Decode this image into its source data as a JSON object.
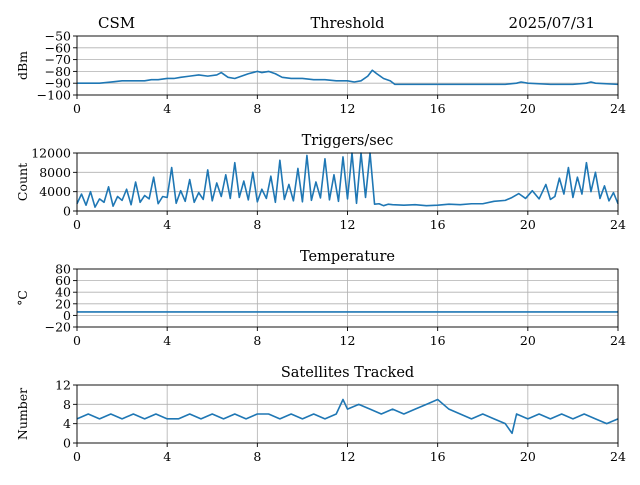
{
  "header": {
    "left": "CSM",
    "right": "2025/07/31"
  },
  "colors": {
    "series": "#1f77b4",
    "grid": "#b0b0b0",
    "axes": "#000000"
  },
  "chart_data": [
    {
      "type": "line",
      "title": "Threshold",
      "xlabel": "",
      "ylabel": "dBm",
      "xlim": [
        0,
        24
      ],
      "ylim": [
        -100,
        -50
      ],
      "xticks": [
        0,
        4,
        8,
        12,
        16,
        20,
        24
      ],
      "yticks": [
        -100,
        -90,
        -80,
        -70,
        -60,
        -50
      ],
      "ytick_labels": [
        "−100",
        "−90",
        "−80",
        "−70",
        "−60",
        "−50"
      ],
      "grid": true,
      "series": [
        {
          "x": [
            0,
            0.5,
            1,
            1.5,
            2,
            2.5,
            3,
            3.3,
            3.6,
            4,
            4.3,
            4.6,
            5,
            5.4,
            5.8,
            6.2,
            6.4,
            6.7,
            7,
            7.3,
            7.6,
            8,
            8.2,
            8.5,
            8.8,
            9.1,
            9.5,
            10,
            10.5,
            11,
            11.5,
            12,
            12.3,
            12.6,
            12.9,
            13.1,
            13.3,
            13.6,
            13.9,
            14.1,
            14.5,
            15,
            16,
            17,
            18,
            19,
            19.5,
            19.7,
            20,
            21,
            22,
            22.6,
            22.8,
            23,
            24
          ],
          "y": [
            -90,
            -90,
            -90,
            -89,
            -88,
            -88,
            -88,
            -87,
            -87,
            -86,
            -86,
            -85,
            -84,
            -83,
            -84,
            -83,
            -81,
            -85,
            -86,
            -84,
            -82,
            -80,
            -81,
            -80,
            -82,
            -85,
            -86,
            -86,
            -87,
            -87,
            -88,
            -88,
            -89,
            -88,
            -84,
            -79,
            -82,
            -86,
            -88,
            -91,
            -91,
            -91,
            -91,
            -91,
            -91,
            -91,
            -90,
            -89,
            -90,
            -91,
            -91,
            -90,
            -89,
            -90,
            -91
          ]
        }
      ]
    },
    {
      "type": "line",
      "title": "Triggers/sec",
      "xlabel": "",
      "ylabel": "Count",
      "xlim": [
        0,
        24
      ],
      "ylim": [
        0,
        12000
      ],
      "xticks": [
        0,
        4,
        8,
        12,
        16,
        20,
        24
      ],
      "yticks": [
        0,
        4000,
        8000,
        12000
      ],
      "ytick_labels": [
        "0",
        "4000",
        "8000",
        "12000"
      ],
      "grid": true,
      "series": [
        {
          "x": [
            0,
            0.2,
            0.4,
            0.6,
            0.8,
            1,
            1.2,
            1.4,
            1.6,
            1.8,
            2,
            2.2,
            2.4,
            2.6,
            2.8,
            3,
            3.2,
            3.4,
            3.6,
            3.8,
            4,
            4.2,
            4.4,
            4.6,
            4.8,
            5,
            5.2,
            5.4,
            5.6,
            5.8,
            6,
            6.2,
            6.4,
            6.6,
            6.8,
            7,
            7.2,
            7.4,
            7.6,
            7.8,
            8,
            8.2,
            8.4,
            8.6,
            8.8,
            9,
            9.2,
            9.4,
            9.6,
            9.8,
            10,
            10.2,
            10.4,
            10.6,
            10.8,
            11,
            11.2,
            11.4,
            11.6,
            11.8,
            12,
            12.2,
            12.4,
            12.6,
            12.8,
            13,
            13.2,
            13.4,
            13.6,
            13.8,
            14,
            14.5,
            15,
            15.5,
            16,
            16.5,
            17,
            17.5,
            18,
            18.5,
            19,
            19.3,
            19.6,
            19.9,
            20.2,
            20.5,
            20.8,
            21,
            21.2,
            21.4,
            21.6,
            21.8,
            22,
            22.2,
            22.4,
            22.6,
            22.8,
            23,
            23.2,
            23.4,
            23.6,
            23.8,
            24
          ],
          "y": [
            1500,
            3500,
            1200,
            4000,
            800,
            2500,
            1800,
            5000,
            1000,
            3000,
            2200,
            4500,
            1300,
            6000,
            1800,
            3200,
            2500,
            7000,
            1500,
            3000,
            2800,
            9000,
            1600,
            4200,
            2000,
            6500,
            1800,
            3800,
            2400,
            8500,
            2100,
            5800,
            3000,
            7500,
            2600,
            10000,
            2800,
            6200,
            2300,
            8000,
            1900,
            4500,
            2600,
            7200,
            1800,
            10500,
            2400,
            5500,
            2100,
            8800,
            1900,
            11500,
            2200,
            6000,
            2700,
            10800,
            2300,
            7500,
            2000,
            11200,
            2500,
            12000,
            1600,
            12000,
            2800,
            12000,
            1400,
            1500,
            1100,
            1400,
            1300,
            1200,
            1300,
            1100,
            1200,
            1400,
            1300,
            1500,
            1500,
            2000,
            2200,
            2800,
            3600,
            2600,
            4200,
            2500,
            5500,
            2400,
            3000,
            6800,
            3500,
            9000,
            2800,
            7000,
            3500,
            10000,
            4000,
            8000,
            2600,
            5200,
            2100,
            3800,
            1500
          ]
        }
      ]
    },
    {
      "type": "line",
      "title": "Temperature",
      "xlabel": "",
      "ylabel": "°C",
      "xlim": [
        0,
        24
      ],
      "ylim": [
        -20,
        80
      ],
      "xticks": [
        0,
        4,
        8,
        12,
        16,
        20,
        24
      ],
      "yticks": [
        -20,
        0,
        20,
        40,
        60,
        80
      ],
      "ytick_labels": [
        "−20",
        "0",
        "20",
        "40",
        "60",
        "80"
      ],
      "grid": true,
      "series": [
        {
          "x": [
            0,
            24
          ],
          "y": [
            6,
            6
          ]
        }
      ]
    },
    {
      "type": "line",
      "title": "Satellites Tracked",
      "xlabel": "",
      "ylabel": "Number",
      "xlim": [
        0,
        24
      ],
      "ylim": [
        0,
        12
      ],
      "xticks": [
        0,
        4,
        8,
        12,
        16,
        20,
        24
      ],
      "yticks": [
        0,
        4,
        8,
        12
      ],
      "ytick_labels": [
        "0",
        "4",
        "8",
        "12"
      ],
      "grid": true,
      "series": [
        {
          "x": [
            0,
            0.5,
            1,
            1.5,
            2,
            2.5,
            3,
            3.5,
            4,
            4.5,
            5,
            5.5,
            6,
            6.5,
            7,
            7.5,
            8,
            8.5,
            9,
            9.5,
            10,
            10.5,
            11,
            11.5,
            11.8,
            12,
            12.5,
            13,
            13.5,
            14,
            14.5,
            15,
            15.5,
            16,
            16.5,
            17,
            17.5,
            18,
            18.5,
            19,
            19.3,
            19.5,
            20,
            20.5,
            21,
            21.5,
            22,
            22.5,
            23,
            23.5,
            24
          ],
          "y": [
            5,
            6,
            5,
            6,
            5,
            6,
            5,
            6,
            5,
            5,
            6,
            5,
            6,
            5,
            6,
            5,
            6,
            6,
            5,
            6,
            5,
            6,
            5,
            6,
            9,
            7,
            8,
            7,
            6,
            7,
            6,
            7,
            8,
            9,
            7,
            6,
            5,
            6,
            5,
            4,
            2,
            6,
            5,
            6,
            5,
            6,
            5,
            6,
            5,
            4,
            5
          ]
        }
      ]
    }
  ]
}
